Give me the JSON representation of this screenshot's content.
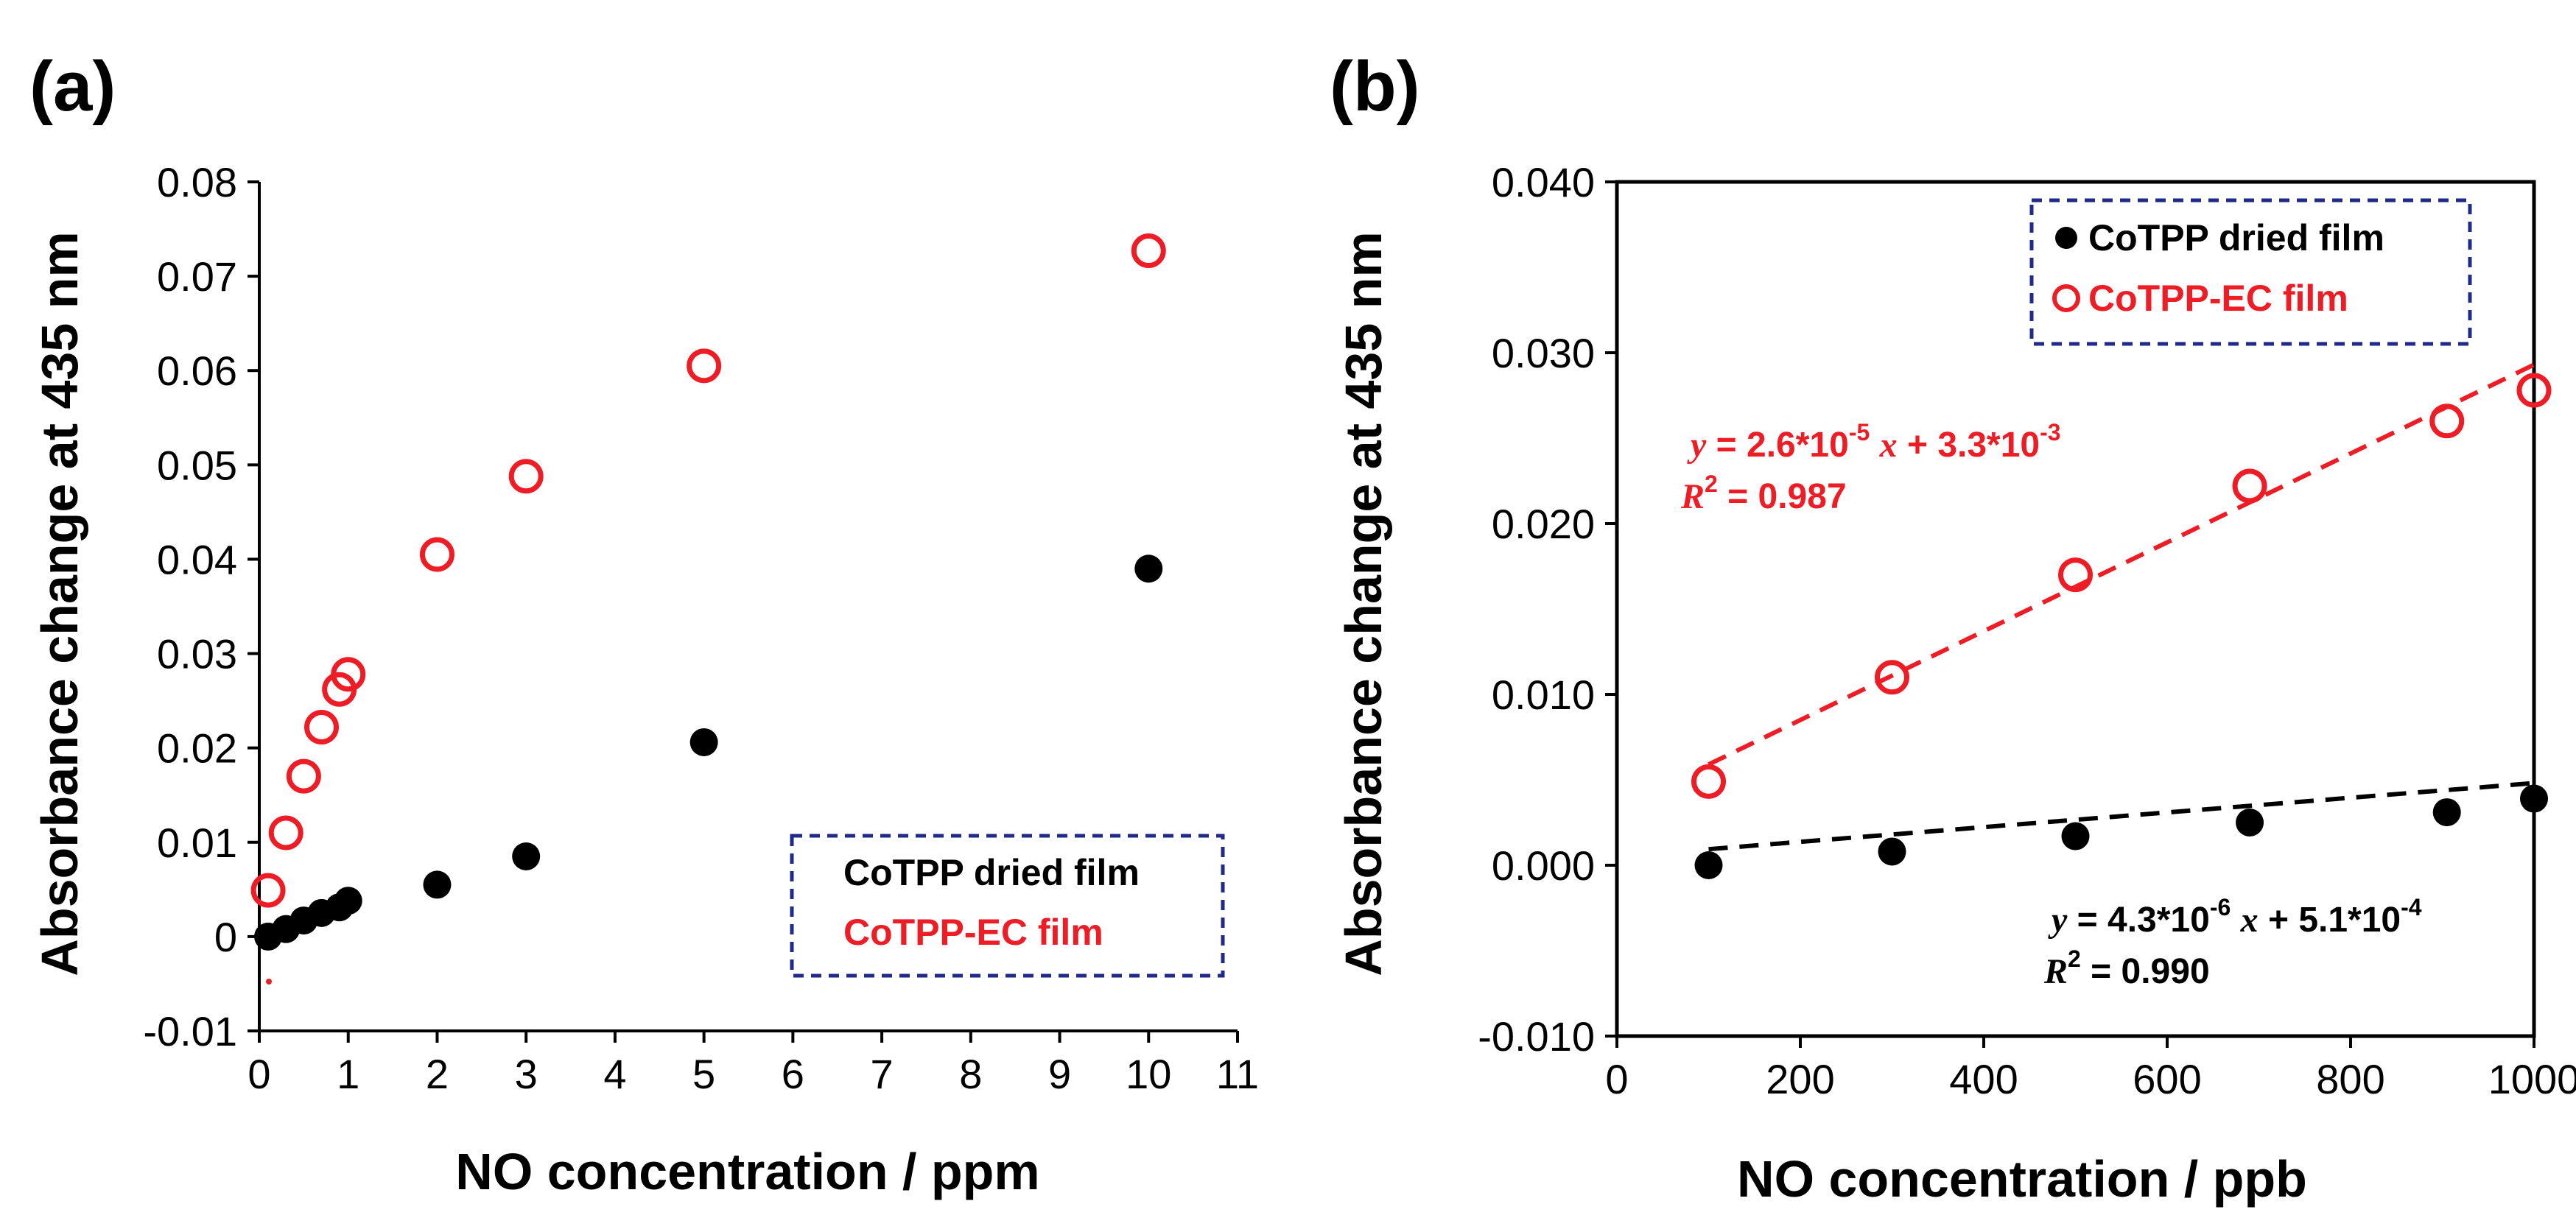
{
  "chart_data": [
    {
      "panel_label": "(a)",
      "type": "scatter",
      "xlabel": "NO concentration / ppm",
      "ylabel": "Absorbance change at 435 nm",
      "xlim": [
        0,
        11
      ],
      "ylim": [
        -0.01,
        0.08
      ],
      "xticks": [
        0,
        1,
        2,
        3,
        4,
        5,
        6,
        7,
        8,
        9,
        10,
        11
      ],
      "yticks": [
        -0.01,
        0,
        0.01,
        0.02,
        0.03,
        0.04,
        0.05,
        0.06,
        0.07,
        0.08
      ],
      "xtick_labels": [
        "0",
        "1",
        "2",
        "3",
        "4",
        "5",
        "6",
        "7",
        "8",
        "9",
        "10",
        "11"
      ],
      "ytick_labels": [
        "-0.01",
        "0",
        "0.01",
        "0.02",
        "0.03",
        "0.04",
        "0.05",
        "0.06",
        "0.07",
        "0.08"
      ],
      "legend_position": "bottom-right",
      "series": [
        {
          "name": "CoTPP dried film",
          "color": "#000000",
          "marker": "filled-circle",
          "x": [
            0.1,
            0.3,
            0.5,
            0.7,
            0.9,
            1,
            2,
            3,
            5,
            10
          ],
          "y": [
            0.0,
            0.0008,
            0.0017,
            0.0025,
            0.0031,
            0.0038,
            0.0055,
            0.0085,
            0.0206,
            0.039
          ]
        },
        {
          "name": "CoTPP-EC film",
          "color": "#ee1c25",
          "marker": "open-circle",
          "x": [
            0.1,
            0.3,
            0.5,
            0.7,
            0.9,
            1,
            2,
            3,
            5,
            10
          ],
          "y": [
            0.0049,
            0.011,
            0.017,
            0.0222,
            0.0262,
            0.0278,
            0.0405,
            0.0488,
            0.0605,
            0.0727
          ]
        }
      ]
    },
    {
      "panel_label": "(b)",
      "type": "scatter",
      "xlabel": "NO concentration / ppb",
      "ylabel": "Absorbance change at 435 nm",
      "xlim": [
        0,
        1000
      ],
      "ylim": [
        -0.01,
        0.04
      ],
      "xticks": [
        0,
        200,
        400,
        600,
        800,
        1000
      ],
      "yticks": [
        -0.01,
        0,
        0.01,
        0.02,
        0.03,
        0.04
      ],
      "xtick_labels": [
        "0",
        "200",
        "400",
        "600",
        "800",
        "1000"
      ],
      "ytick_labels": [
        "-0.010",
        "0.000",
        "0.010",
        "0.020",
        "0.030",
        "0.040"
      ],
      "legend_position": "top-right",
      "series": [
        {
          "name": "CoTPP dried film",
          "color": "#000000",
          "marker": "filled-circle",
          "x": [
            100,
            300,
            500,
            690,
            905,
            1000
          ],
          "y": [
            0.0,
            0.0008,
            0.0017,
            0.0025,
            0.0031,
            0.0039
          ],
          "fit": {
            "slope": 4.3e-06,
            "intercept": 0.00051,
            "x_range": [
              100,
              1000
            ],
            "eq_y": "y",
            "eq_body": " = 4.3*10",
            "eq_exp1": "-6",
            "eq_x": "x",
            "eq_body2": " + 5.1*10",
            "eq_exp2": "-4",
            "r2_r": "R",
            "r2_exp": "2",
            "r2_value": " = 0.990"
          }
        },
        {
          "name": "CoTPP-EC film",
          "color": "#ee1c25",
          "marker": "open-circle",
          "x": [
            100,
            300,
            500,
            690,
            905,
            1000
          ],
          "y": [
            0.0049,
            0.011,
            0.017,
            0.0222,
            0.026,
            0.0278
          ],
          "fit": {
            "slope": 2.6e-05,
            "intercept": 0.0033,
            "x_range": [
              100,
              1000
            ],
            "eq_y": "y",
            "eq_body": " = 2.6*10",
            "eq_exp1": "-5",
            "eq_x": "x",
            "eq_body2": " + 3.3*10",
            "eq_exp2": "-3",
            "r2_r": "R",
            "r2_exp": "2",
            "r2_value": " = 0.987"
          }
        }
      ]
    }
  ]
}
